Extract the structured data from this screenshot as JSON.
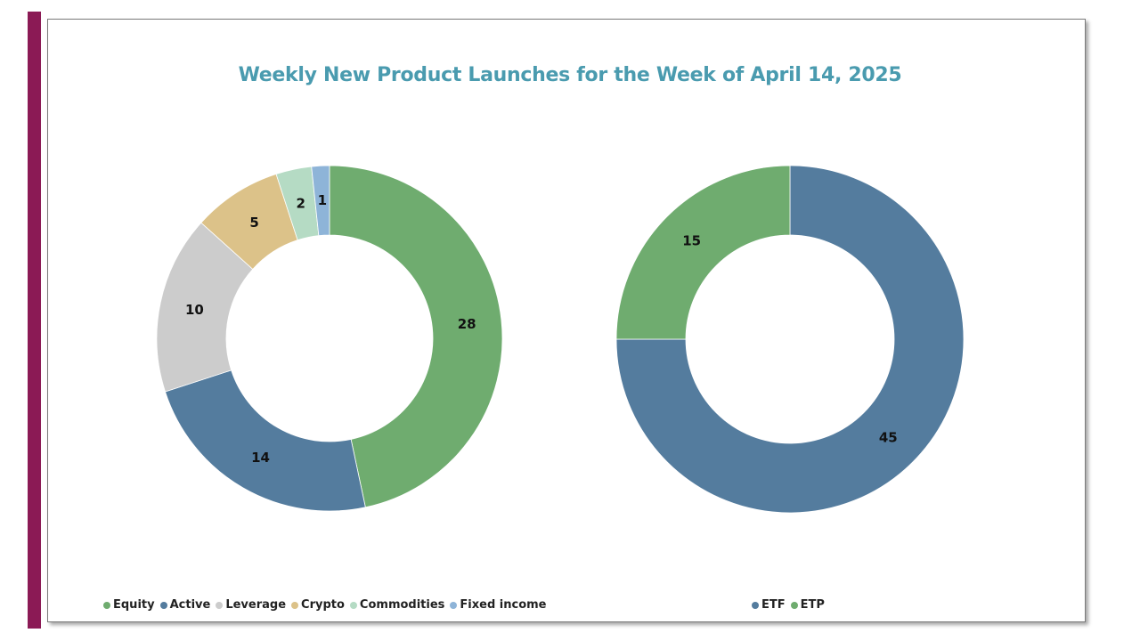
{
  "title": "Weekly New Product Launches for the Week of April 14, 2025",
  "colors": {
    "accent_bar": "#8B1A55",
    "title": "#4A9BAF"
  },
  "chart_data": [
    {
      "type": "pie",
      "variant": "donut",
      "title": "Weekly New Product Launches for the Week of April 14, 2025",
      "categories": [
        "Equity",
        "Active",
        "Leverage",
        "Crypto",
        "Commodities",
        "Fixed income"
      ],
      "values": [
        28,
        14,
        10,
        5,
        2,
        1
      ],
      "colors": [
        "#6FAC6F",
        "#547C9E",
        "#CCCCCC",
        "#DCC289",
        "#B5DBC4",
        "#8EB4D8"
      ],
      "data_labels": [
        "28",
        "14",
        "10",
        "5",
        "2",
        "1"
      ],
      "legend_position": "bottom"
    },
    {
      "type": "pie",
      "variant": "donut",
      "categories": [
        "ETF",
        "ETP"
      ],
      "values": [
        45,
        15
      ],
      "colors": [
        "#547C9E",
        "#6FAC6F"
      ],
      "data_labels": [
        "45",
        "15"
      ],
      "legend_position": "bottom"
    }
  ]
}
